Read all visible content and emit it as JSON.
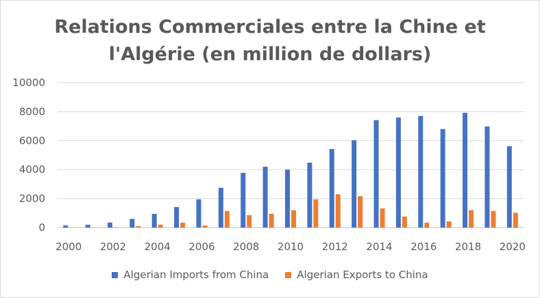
{
  "chart_data": {
    "type": "bar",
    "title_lines": [
      "Relations Commerciales entre la Chine et",
      "l'Algérie (en million de dollars)"
    ],
    "xlabel": "",
    "ylabel": "",
    "ylim": [
      0,
      10000
    ],
    "y_ticks": [
      "0",
      "2000",
      "4000",
      "6000",
      "8000",
      "10000"
    ],
    "x_tick_labels": [
      "2000",
      "2002",
      "2004",
      "2006",
      "2008",
      "2010",
      "2012",
      "2014",
      "2016",
      "2018",
      "2020"
    ],
    "categories": [
      "2000",
      "2001",
      "2002",
      "2003",
      "2004",
      "2005",
      "2006",
      "2007",
      "2008",
      "2009",
      "2010",
      "2011",
      "2012",
      "2013",
      "2014",
      "2015",
      "2016",
      "2017",
      "2018",
      "2019",
      "2020"
    ],
    "grid": true,
    "legend_position": "bottom",
    "series": [
      {
        "name": "Algerian Imports from China",
        "color": "#4472c4",
        "values": [
          150,
          200,
          350,
          600,
          950,
          1420,
          1950,
          2750,
          3780,
          4200,
          4000,
          4480,
          5420,
          6030,
          7420,
          7600,
          7700,
          6800,
          7920,
          6980,
          5620
        ]
      },
      {
        "name": "Algerian Exports to China",
        "color": "#ed7d31",
        "values": [
          10,
          20,
          30,
          100,
          200,
          340,
          150,
          1150,
          860,
          950,
          1200,
          1950,
          2300,
          2170,
          1330,
          760,
          340,
          430,
          1200,
          1150,
          1020
        ]
      }
    ]
  }
}
